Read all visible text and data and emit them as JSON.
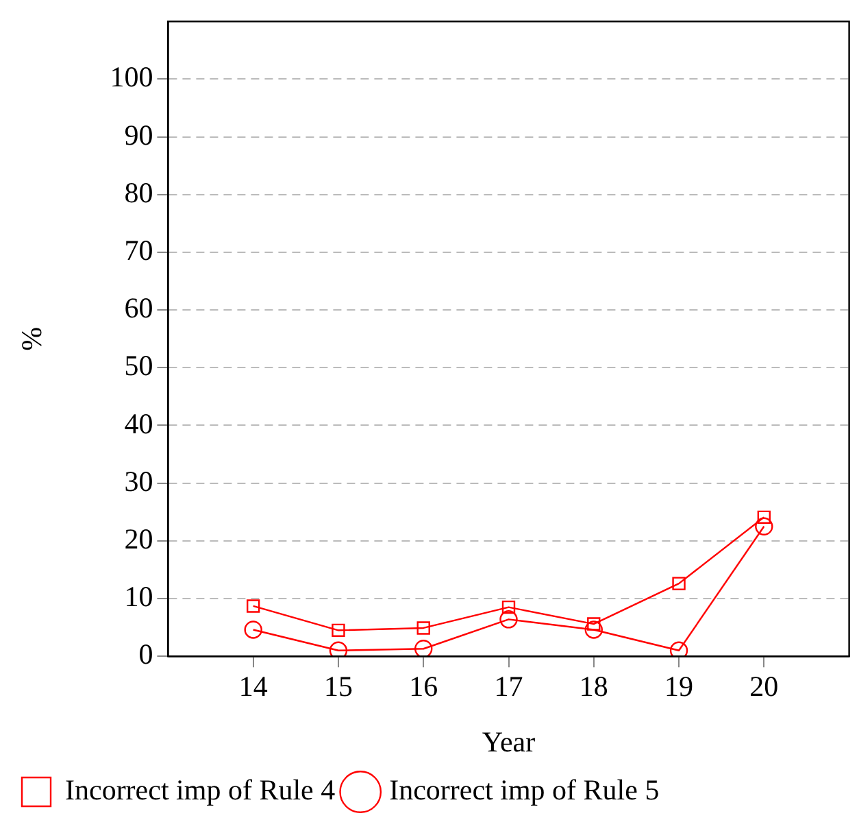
{
  "chart_data": {
    "type": "line",
    "xlabel": "Year",
    "ylabel": "%",
    "x": [
      14,
      15,
      16,
      17,
      18,
      19,
      20
    ],
    "series": [
      {
        "name": "Incorrect imp of Rule 4",
        "color": "#ff0000",
        "marker": "square",
        "values": [
          8.7,
          4.5,
          4.9,
          8.5,
          5.6,
          12.6,
          24.1
        ]
      },
      {
        "name": "Incorrect imp of Rule 5",
        "color": "#ff0000",
        "marker": "circle",
        "values": [
          4.6,
          1.0,
          1.3,
          6.4,
          4.6,
          1.0,
          22.5
        ]
      }
    ],
    "xlim": [
      13,
      21
    ],
    "xticks": [
      14,
      15,
      16,
      17,
      18,
      19,
      20
    ],
    "ylim": [
      0,
      110
    ],
    "yticks": [
      0,
      10,
      20,
      30,
      40,
      50,
      60,
      70,
      80,
      90,
      100
    ],
    "grid": "y",
    "legend": "bottom",
    "line_style": "solid"
  }
}
